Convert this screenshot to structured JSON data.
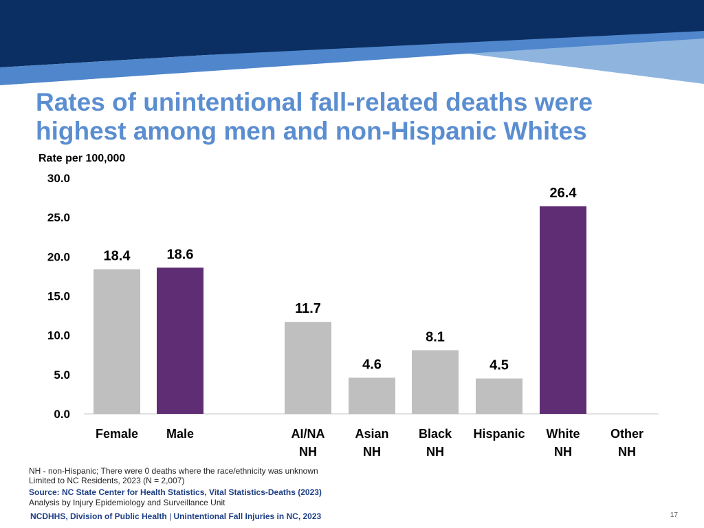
{
  "slide": {
    "title_lines": [
      "Rates of unintentional fall-related deaths were",
      "highest among men and non-Hispanic Whites"
    ],
    "notes": [
      "NH - non-Hispanic; There were 0 deaths where the race/ethnicity was unknown",
      "Limited to NC Residents, 2023 (N = 2,007)"
    ],
    "source": "Source: NC State Center for Health Statistics, Vital Statistics-Deaths (2023)",
    "analysis": "Analysis by Injury Epidemiology and Surveillance Unit",
    "footer_org": "NCDHHS, Division of Public Health",
    "footer_sep": " | ",
    "footer_topic": "Unintentional Fall Injuries in NC, 2023",
    "page_number": "17"
  },
  "colors": {
    "banner_dark": "#0b2f63",
    "banner_mid": "#4f86cc",
    "banner_light": "#8fb5df",
    "title": "#5b8ed0",
    "bar_gray": "#bfbfbf",
    "bar_purple": "#5f2d74",
    "source_text": "#1d3e84"
  },
  "chart_data": {
    "type": "bar",
    "ylabel": "Rate per 100,000",
    "ylim": [
      0,
      30
    ],
    "yticks": [
      "0.0",
      "5.0",
      "10.0",
      "15.0",
      "20.0",
      "25.0",
      "30.0"
    ],
    "grid": false,
    "categories": [
      {
        "lines": [
          "Female"
        ],
        "value": 18.4,
        "label": "18.4",
        "color": "gray"
      },
      {
        "lines": [
          "Male"
        ],
        "value": 18.6,
        "label": "18.6",
        "color": "purple"
      },
      {
        "lines": [
          "AI/NA",
          "NH"
        ],
        "value": 11.7,
        "label": "11.7",
        "color": "gray"
      },
      {
        "lines": [
          "Asian",
          "NH"
        ],
        "value": 4.6,
        "label": "4.6",
        "color": "gray"
      },
      {
        "lines": [
          "Black",
          "NH"
        ],
        "value": 8.1,
        "label": "8.1",
        "color": "gray"
      },
      {
        "lines": [
          "Hispanic"
        ],
        "value": 4.5,
        "label": "4.5",
        "color": "gray"
      },
      {
        "lines": [
          "White",
          "NH"
        ],
        "value": 26.4,
        "label": "26.4",
        "color": "purple"
      },
      {
        "lines": [
          "Other",
          "NH"
        ],
        "value": 0,
        "label": "",
        "color": "gray"
      }
    ]
  }
}
